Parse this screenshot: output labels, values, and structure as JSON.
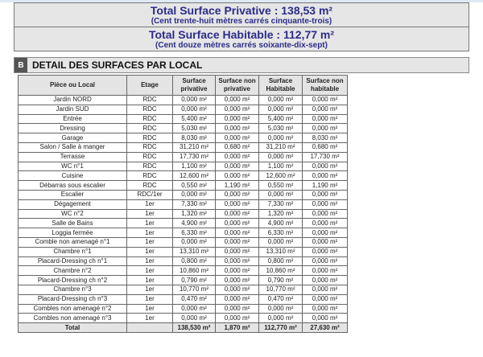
{
  "totals": [
    {
      "main": "Total Surface Privative : 138,53 m²",
      "sub": "(Cent trente-huit mètres carrés cinquante-trois)"
    },
    {
      "main": "Total Surface Habitable : 112,77 m²",
      "sub": "(Cent douze mètres carrés soixante-dix-sept)"
    }
  ],
  "section": {
    "letter": "B",
    "title": "DETAIL DES SURFACES PAR LOCAL"
  },
  "table": {
    "headers": [
      "Pièce ou Local",
      "Etage",
      "Surface privative",
      "Surface non privative",
      "Surface Habitable",
      "Surface non habitable"
    ],
    "rows": [
      [
        "Jardin NORD",
        "RDC",
        "0,000 m²",
        "0,000 m²",
        "0,000 m²",
        "0,000 m²"
      ],
      [
        "Jardin SUD",
        "RDC",
        "0,000 m²",
        "0,000 m²",
        "0,000 m²",
        "0,000 m²"
      ],
      [
        "Entrée",
        "RDC",
        "5,400 m²",
        "0,000 m²",
        "5,400 m²",
        "0,000 m²"
      ],
      [
        "Dressing",
        "RDC",
        "5,030 m²",
        "0,000 m²",
        "5,030 m²",
        "0,000 m²"
      ],
      [
        "Garage",
        "RDC",
        "8,030 m²",
        "0,000 m²",
        "0,000 m²",
        "8,030 m²"
      ],
      [
        "Salon / Salle à manger",
        "RDC",
        "31,210 m²",
        "0,680 m²",
        "31,210 m²",
        "0,680 m²"
      ],
      [
        "Terrasse",
        "RDC",
        "17,730 m²",
        "0,000 m²",
        "0,000 m²",
        "17,730 m²"
      ],
      [
        "WC n°1",
        "RDC",
        "1,100 m²",
        "0,000 m²",
        "1,100 m²",
        "0,000 m²"
      ],
      [
        "Cuisine",
        "RDC",
        "12,600 m²",
        "0,000 m²",
        "12,600 m²",
        "0,000 m²"
      ],
      [
        "Débarras sous escalier",
        "RDC",
        "0,550 m²",
        "1,190 m²",
        "0,550 m²",
        "1,190 m²"
      ],
      [
        "Escalier",
        "RDC/1er",
        "0,000 m²",
        "0,000 m²",
        "0,000 m²",
        "0,000 m²"
      ],
      [
        "Dégagement",
        "1er",
        "7,330 m²",
        "0,000 m²",
        "7,330 m²",
        "0,000 m²"
      ],
      [
        "WC n°2",
        "1er",
        "1,320 m²",
        "0,000 m²",
        "1,320 m²",
        "0,000 m²"
      ],
      [
        "Salle de Bains",
        "1er",
        "4,900 m²",
        "0,000 m²",
        "4,900 m²",
        "0,000 m²"
      ],
      [
        "Loggia fermée",
        "1er",
        "6,330 m²",
        "0,000 m²",
        "6,330 m²",
        "0,000 m²"
      ],
      [
        "Comble non amenagé n°1",
        "1er",
        "0,000 m²",
        "0,000 m²",
        "0,000 m²",
        "0,000 m²"
      ],
      [
        "Chambre n°1",
        "1er",
        "13,310 m²",
        "0,000 m²",
        "13,310 m²",
        "0,000 m²"
      ],
      [
        "Placard-Dressing ch n°1",
        "1er",
        "0,800 m²",
        "0,000 m²",
        "0,800 m²",
        "0,000 m²"
      ],
      [
        "Chambre n°2",
        "1er",
        "10,860 m²",
        "0,000 m²",
        "10,860 m²",
        "0,000 m²"
      ],
      [
        "Placard-Dressing ch n°2",
        "1er",
        "0,790 m²",
        "0,000 m²",
        "0,790 m²",
        "0,000 m²"
      ],
      [
        "Chambre n°3",
        "1er",
        "10,770 m²",
        "0,000 m²",
        "10,770 m²",
        "0,000 m²"
      ],
      [
        "Placard-Dressing ch n°3",
        "1er",
        "0,470 m²",
        "0,000 m²",
        "0,470 m²",
        "0,000 m²"
      ],
      [
        "Combles non amenagé n°2",
        "1er",
        "0,000 m²",
        "0,000 m²",
        "0,000 m²",
        "0,000 m²"
      ],
      [
        "Combles non amenagé n°3",
        "1er",
        "0,000 m²",
        "0,000 m²",
        "0,000 m²",
        "0,000 m²"
      ]
    ],
    "total": [
      "Total",
      "",
      "138,530 m²",
      "1,870 m²",
      "112,770 m²",
      "27,630 m²"
    ]
  }
}
